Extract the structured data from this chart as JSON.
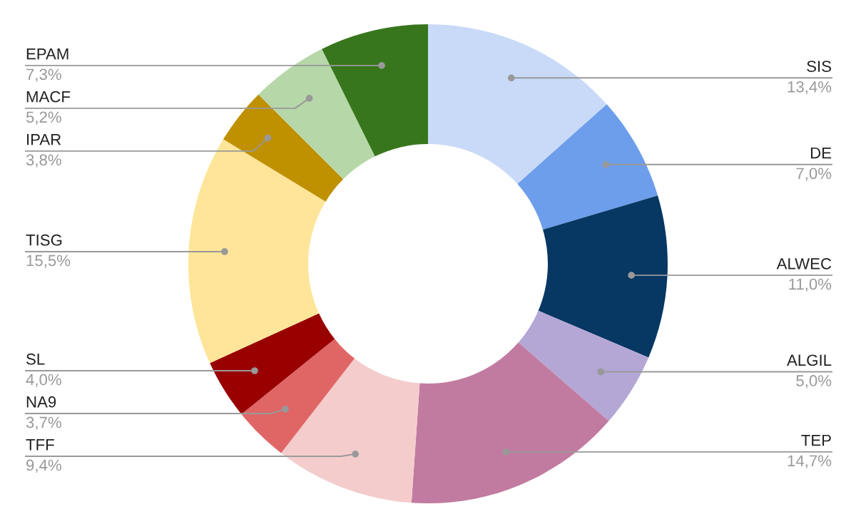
{
  "chart_data": {
    "type": "donut",
    "categories": [
      "SIS",
      "DE",
      "ALWEC",
      "ALGIL",
      "TEP",
      "TFF",
      "NA9",
      "SL",
      "TISG",
      "IPAR",
      "MACF",
      "EPAM"
    ],
    "values": [
      13.4,
      7.0,
      11.0,
      5.0,
      14.7,
      9.4,
      3.7,
      4.0,
      15.5,
      3.8,
      5.2,
      7.3
    ],
    "value_labels": [
      "13,4%",
      "7,0%",
      "11,0%",
      "5,0%",
      "14,7%",
      "9,4%",
      "3,7%",
      "4,0%",
      "15,5%",
      "3,8%",
      "5,2%",
      "7,3%"
    ],
    "colors": [
      "#c9daf8",
      "#6d9eeb",
      "#073763",
      "#b4a7d6",
      "#c27ba0",
      "#f4cccc",
      "#e06666",
      "#990000",
      "#ffe599",
      "#bf9000",
      "#b6d7a8",
      "#38761d"
    ],
    "legend": false
  }
}
